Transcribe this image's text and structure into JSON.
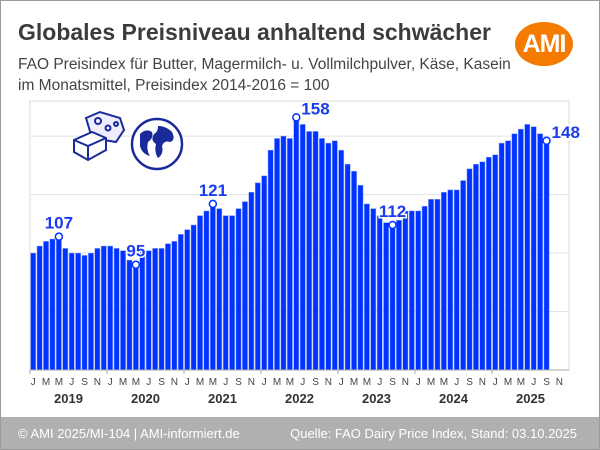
{
  "header": {
    "title": "Globales Preisniveau anhaltend schwächer",
    "subtitle_line1": "FAO Preisindex für Butter, Magermilch- u. Vollmilchpulver, Käse, Kasein",
    "subtitle_line2": "im Monatsmittel, Preisindex 2014-2016 = 100",
    "logo_text": "AMI"
  },
  "footer": {
    "left": "© AMI 2025/MI-104 | AMI-informiert.de",
    "right": "Quelle: FAO Dairy Price Index, Stand: 03.10.2025"
  },
  "colors": {
    "bar": "#0033ff",
    "label": "#1a3cf0",
    "logo": "#f47a00",
    "footer": "#b0b0b0"
  },
  "icons": [
    "cheese-butter-icon",
    "globe-icon"
  ],
  "chart_data": {
    "type": "bar",
    "title": "",
    "xlabel": "",
    "ylabel": "",
    "ylim": [
      50,
      165
    ],
    "grid": true,
    "gridlines": [
      75,
      100,
      125,
      150
    ],
    "years": [
      "2019",
      "2020",
      "2021",
      "2022",
      "2023",
      "2024",
      "2025"
    ],
    "month_tick_labels": [
      "J",
      "M",
      "M",
      "J",
      "S",
      "N"
    ],
    "series": [
      {
        "values": [
          100,
          103,
          105,
          106,
          107,
          102,
          100,
          100,
          99,
          100,
          102,
          103,
          103,
          102,
          101,
          97,
          95,
          101,
          101,
          102,
          102,
          104,
          105,
          108,
          110,
          112,
          116,
          118,
          121,
          119,
          116,
          116,
          119,
          122,
          126,
          130,
          133,
          144,
          149,
          150,
          149,
          158,
          155,
          152,
          152,
          149,
          147,
          148,
          144,
          138,
          135,
          129,
          121,
          119,
          116,
          113,
          112,
          114,
          118,
          118,
          118,
          120,
          123,
          123,
          126,
          127,
          127,
          131,
          136,
          138,
          139,
          141,
          142,
          147,
          148,
          151,
          153,
          155,
          154,
          151,
          148
        ]
      }
    ],
    "annotations": [
      {
        "month": "2019-05",
        "value": 107,
        "label": "107"
      },
      {
        "month": "2020-05",
        "value": 95,
        "label": "95"
      },
      {
        "month": "2021-05",
        "value": 121,
        "label": "121"
      },
      {
        "month": "2022-06",
        "value": 158,
        "label": "158"
      },
      {
        "month": "2023-09",
        "value": 112,
        "label": "112"
      },
      {
        "month": "2025-09",
        "value": 148,
        "label": "148"
      }
    ]
  }
}
